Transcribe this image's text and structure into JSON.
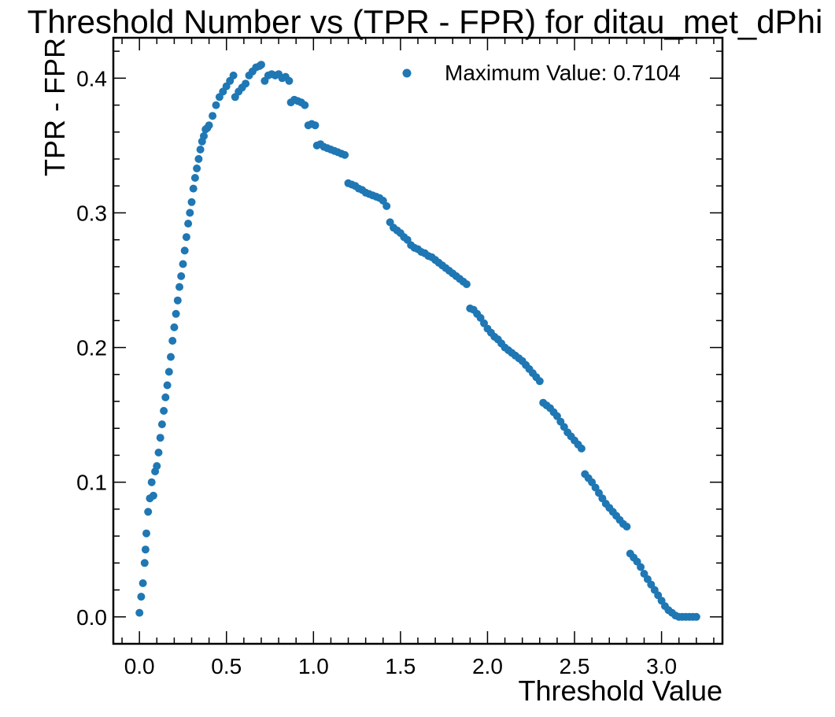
{
  "chart_data": {
    "type": "scatter",
    "title": "Threshold Number vs (TPR - FPR) for ditau_met_dPhi",
    "xlabel": "Threshold Value",
    "ylabel": "TPR - FPR",
    "xlim": [
      -0.15,
      3.35
    ],
    "ylim": [
      -0.02,
      0.43
    ],
    "x_ticks": [
      "0.0",
      "0.5",
      "1.0",
      "1.5",
      "2.0",
      "2.5",
      "3.0"
    ],
    "y_ticks": [
      "0.0",
      "0.1",
      "0.2",
      "0.3",
      "0.4"
    ],
    "legend": {
      "label": "Maximum Value: 0.7104",
      "position": "top-right"
    },
    "grid": false,
    "marker_color": "#1f77b4",
    "series": [
      {
        "points": [
          [
            0.0,
            0.003
          ],
          [
            0.01,
            0.015
          ],
          [
            0.02,
            0.025
          ],
          [
            0.03,
            0.04
          ],
          [
            0.035,
            0.05
          ],
          [
            0.04,
            0.062
          ],
          [
            0.05,
            0.078
          ],
          [
            0.06,
            0.088
          ],
          [
            0.07,
            0.1
          ],
          [
            0.08,
            0.09
          ],
          [
            0.09,
            0.108
          ],
          [
            0.1,
            0.112
          ],
          [
            0.11,
            0.122
          ],
          [
            0.12,
            0.133
          ],
          [
            0.13,
            0.143
          ],
          [
            0.14,
            0.153
          ],
          [
            0.15,
            0.163
          ],
          [
            0.16,
            0.172
          ],
          [
            0.17,
            0.182
          ],
          [
            0.18,
            0.193
          ],
          [
            0.19,
            0.205
          ],
          [
            0.2,
            0.215
          ],
          [
            0.21,
            0.225
          ],
          [
            0.22,
            0.235
          ],
          [
            0.23,
            0.245
          ],
          [
            0.24,
            0.253
          ],
          [
            0.25,
            0.262
          ],
          [
            0.26,
            0.272
          ],
          [
            0.27,
            0.282
          ],
          [
            0.28,
            0.292
          ],
          [
            0.29,
            0.3
          ],
          [
            0.3,
            0.308
          ],
          [
            0.31,
            0.318
          ],
          [
            0.32,
            0.326
          ],
          [
            0.33,
            0.333
          ],
          [
            0.34,
            0.34
          ],
          [
            0.35,
            0.347
          ],
          [
            0.36,
            0.353
          ],
          [
            0.37,
            0.357
          ],
          [
            0.38,
            0.362
          ],
          [
            0.39,
            0.363
          ],
          [
            0.4,
            0.365
          ],
          [
            0.42,
            0.372
          ],
          [
            0.44,
            0.38
          ],
          [
            0.46,
            0.386
          ],
          [
            0.48,
            0.39
          ],
          [
            0.5,
            0.394
          ],
          [
            0.52,
            0.398
          ],
          [
            0.54,
            0.402
          ],
          [
            0.55,
            0.386
          ],
          [
            0.57,
            0.39
          ],
          [
            0.59,
            0.393
          ],
          [
            0.61,
            0.396
          ],
          [
            0.63,
            0.402
          ],
          [
            0.65,
            0.405
          ],
          [
            0.67,
            0.408
          ],
          [
            0.69,
            0.409
          ],
          [
            0.7,
            0.41
          ],
          [
            0.72,
            0.398
          ],
          [
            0.74,
            0.402
          ],
          [
            0.76,
            0.403
          ],
          [
            0.78,
            0.402
          ],
          [
            0.8,
            0.403
          ],
          [
            0.82,
            0.4
          ],
          [
            0.84,
            0.401
          ],
          [
            0.86,
            0.398
          ],
          [
            0.87,
            0.382
          ],
          [
            0.89,
            0.384
          ],
          [
            0.91,
            0.383
          ],
          [
            0.93,
            0.382
          ],
          [
            0.95,
            0.38
          ],
          [
            0.97,
            0.365
          ],
          [
            0.99,
            0.366
          ],
          [
            1.01,
            0.365
          ],
          [
            1.02,
            0.35
          ],
          [
            1.04,
            0.351
          ],
          [
            1.06,
            0.349
          ],
          [
            1.08,
            0.348
          ],
          [
            1.1,
            0.347
          ],
          [
            1.12,
            0.346
          ],
          [
            1.14,
            0.345
          ],
          [
            1.16,
            0.344
          ],
          [
            1.18,
            0.343
          ],
          [
            1.2,
            0.322
          ],
          [
            1.22,
            0.321
          ],
          [
            1.24,
            0.32
          ],
          [
            1.26,
            0.318
          ],
          [
            1.28,
            0.317
          ],
          [
            1.3,
            0.315
          ],
          [
            1.32,
            0.314
          ],
          [
            1.34,
            0.313
          ],
          [
            1.36,
            0.312
          ],
          [
            1.38,
            0.311
          ],
          [
            1.4,
            0.309
          ],
          [
            1.42,
            0.305
          ],
          [
            1.44,
            0.293
          ],
          [
            1.46,
            0.289
          ],
          [
            1.48,
            0.287
          ],
          [
            1.5,
            0.285
          ],
          [
            1.52,
            0.282
          ],
          [
            1.54,
            0.28
          ],
          [
            1.56,
            0.276
          ],
          [
            1.58,
            0.274
          ],
          [
            1.6,
            0.273
          ],
          [
            1.62,
            0.271
          ],
          [
            1.64,
            0.27
          ],
          [
            1.66,
            0.268
          ],
          [
            1.68,
            0.267
          ],
          [
            1.7,
            0.265
          ],
          [
            1.72,
            0.263
          ],
          [
            1.74,
            0.261
          ],
          [
            1.76,
            0.259
          ],
          [
            1.78,
            0.257
          ],
          [
            1.8,
            0.255
          ],
          [
            1.82,
            0.253
          ],
          [
            1.84,
            0.251
          ],
          [
            1.86,
            0.249
          ],
          [
            1.88,
            0.247
          ],
          [
            1.9,
            0.229
          ],
          [
            1.92,
            0.228
          ],
          [
            1.94,
            0.225
          ],
          [
            1.96,
            0.222
          ],
          [
            1.98,
            0.218
          ],
          [
            2.0,
            0.214
          ],
          [
            2.02,
            0.211
          ],
          [
            2.04,
            0.208
          ],
          [
            2.06,
            0.206
          ],
          [
            2.08,
            0.203
          ],
          [
            2.1,
            0.2
          ],
          [
            2.12,
            0.198
          ],
          [
            2.14,
            0.196
          ],
          [
            2.16,
            0.194
          ],
          [
            2.18,
            0.192
          ],
          [
            2.2,
            0.19
          ],
          [
            2.22,
            0.187
          ],
          [
            2.24,
            0.184
          ],
          [
            2.26,
            0.181
          ],
          [
            2.28,
            0.178
          ],
          [
            2.3,
            0.175
          ],
          [
            2.32,
            0.159
          ],
          [
            2.34,
            0.157
          ],
          [
            2.36,
            0.155
          ],
          [
            2.38,
            0.152
          ],
          [
            2.4,
            0.149
          ],
          [
            2.42,
            0.145
          ],
          [
            2.44,
            0.141
          ],
          [
            2.46,
            0.137
          ],
          [
            2.48,
            0.134
          ],
          [
            2.5,
            0.131
          ],
          [
            2.52,
            0.128
          ],
          [
            2.54,
            0.125
          ],
          [
            2.56,
            0.106
          ],
          [
            2.58,
            0.103
          ],
          [
            2.6,
            0.1
          ],
          [
            2.62,
            0.096
          ],
          [
            2.64,
            0.092
          ],
          [
            2.66,
            0.088
          ],
          [
            2.68,
            0.084
          ],
          [
            2.7,
            0.081
          ],
          [
            2.72,
            0.078
          ],
          [
            2.74,
            0.075
          ],
          [
            2.76,
            0.072
          ],
          [
            2.78,
            0.069
          ],
          [
            2.8,
            0.067
          ],
          [
            2.82,
            0.047
          ],
          [
            2.84,
            0.044
          ],
          [
            2.86,
            0.041
          ],
          [
            2.88,
            0.037
          ],
          [
            2.9,
            0.032
          ],
          [
            2.92,
            0.028
          ],
          [
            2.94,
            0.024
          ],
          [
            2.96,
            0.02
          ],
          [
            2.98,
            0.016
          ],
          [
            3.0,
            0.012
          ],
          [
            3.02,
            0.008
          ],
          [
            3.04,
            0.005
          ],
          [
            3.06,
            0.003
          ],
          [
            3.08,
            0.001
          ],
          [
            3.1,
            0.0
          ],
          [
            3.12,
            0.0
          ],
          [
            3.14,
            0.0
          ],
          [
            3.16,
            0.0
          ],
          [
            3.18,
            0.0
          ],
          [
            3.2,
            0.0
          ]
        ]
      }
    ]
  }
}
